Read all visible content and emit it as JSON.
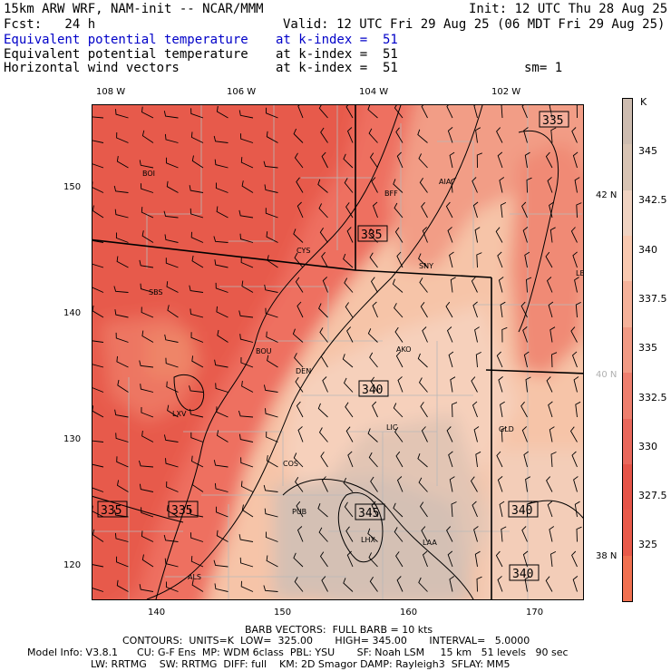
{
  "header": {
    "line1_left": "15km ARW WRF, NAM-init -- NCAR/MMM",
    "line1_right": "Init: 12 UTC Thu 28 Aug 25",
    "line2_left": "Fcst:   24 h",
    "line2_right": "Valid: 12 UTC Fri 29 Aug 25 (06 MDT Fri 29 Aug 25)",
    "rows": [
      {
        "field": "Equivalent potential temperature",
        "level": "at k-index =  51",
        "color": "#0000c8"
      },
      {
        "field": "Equivalent potential temperature",
        "level": "at k-index =  51",
        "color": "#000000"
      },
      {
        "field": "Horizontal wind vectors",
        "level": "at k-index =  51",
        "color": "#000000"
      }
    ],
    "smoothing": "sm= 1"
  },
  "axes": {
    "top_lon": [
      "108 W",
      "106 W",
      "104 W",
      "102 W"
    ],
    "right_lat": [
      "42 N",
      "40 N",
      "38 N"
    ],
    "left_y": [
      "150",
      "140",
      "130",
      "120"
    ],
    "bottom_x": [
      "140",
      "150",
      "160",
      "170"
    ]
  },
  "colorbar": {
    "unit": "K",
    "labels": [
      "345",
      "342.5",
      "340",
      "337.5",
      "335",
      "332.5",
      "330",
      "327.5",
      "325"
    ],
    "colors": [
      "#cdbcb0",
      "#d8c4b4",
      "#f0d3c2",
      "#f9c9b0",
      "#f5b29a",
      "#f19a84",
      "#ee7f6e",
      "#e9685c",
      "#e55448",
      "#e95a4a",
      "#f07050"
    ]
  },
  "map": {
    "stations": [
      "BOI",
      "BFF",
      "AIA",
      "CYS",
      "SNY",
      "LBF",
      "SBS",
      "BOU",
      "AKO",
      "DEN",
      "LXV",
      "LIC",
      "GLD",
      "COS",
      "PUB",
      "LHX",
      "LAA",
      "ALS"
    ],
    "contour_labels": [
      "335",
      "335",
      "340",
      "335",
      "335",
      "340",
      "345",
      "340"
    ]
  },
  "footer": {
    "line1": "BARB VECTORS:  FULL BARB = 10 kts",
    "line2": "CONTOURS:  UNITS=K  LOW=  325.00       HIGH= 345.00       INTERVAL=   5.0000",
    "line3": "Model Info: V3.8.1      CU: G-F Ens  MP: WDM 6class  PBL: YSU       SF: Noah LSM     15 km   51 levels   90 sec",
    "line4": "LW: RRTMG    SW: RRTMG  DIFF: full    KM: 2D Smagor DAMP: Rayleigh3  SFLAY: MM5"
  }
}
